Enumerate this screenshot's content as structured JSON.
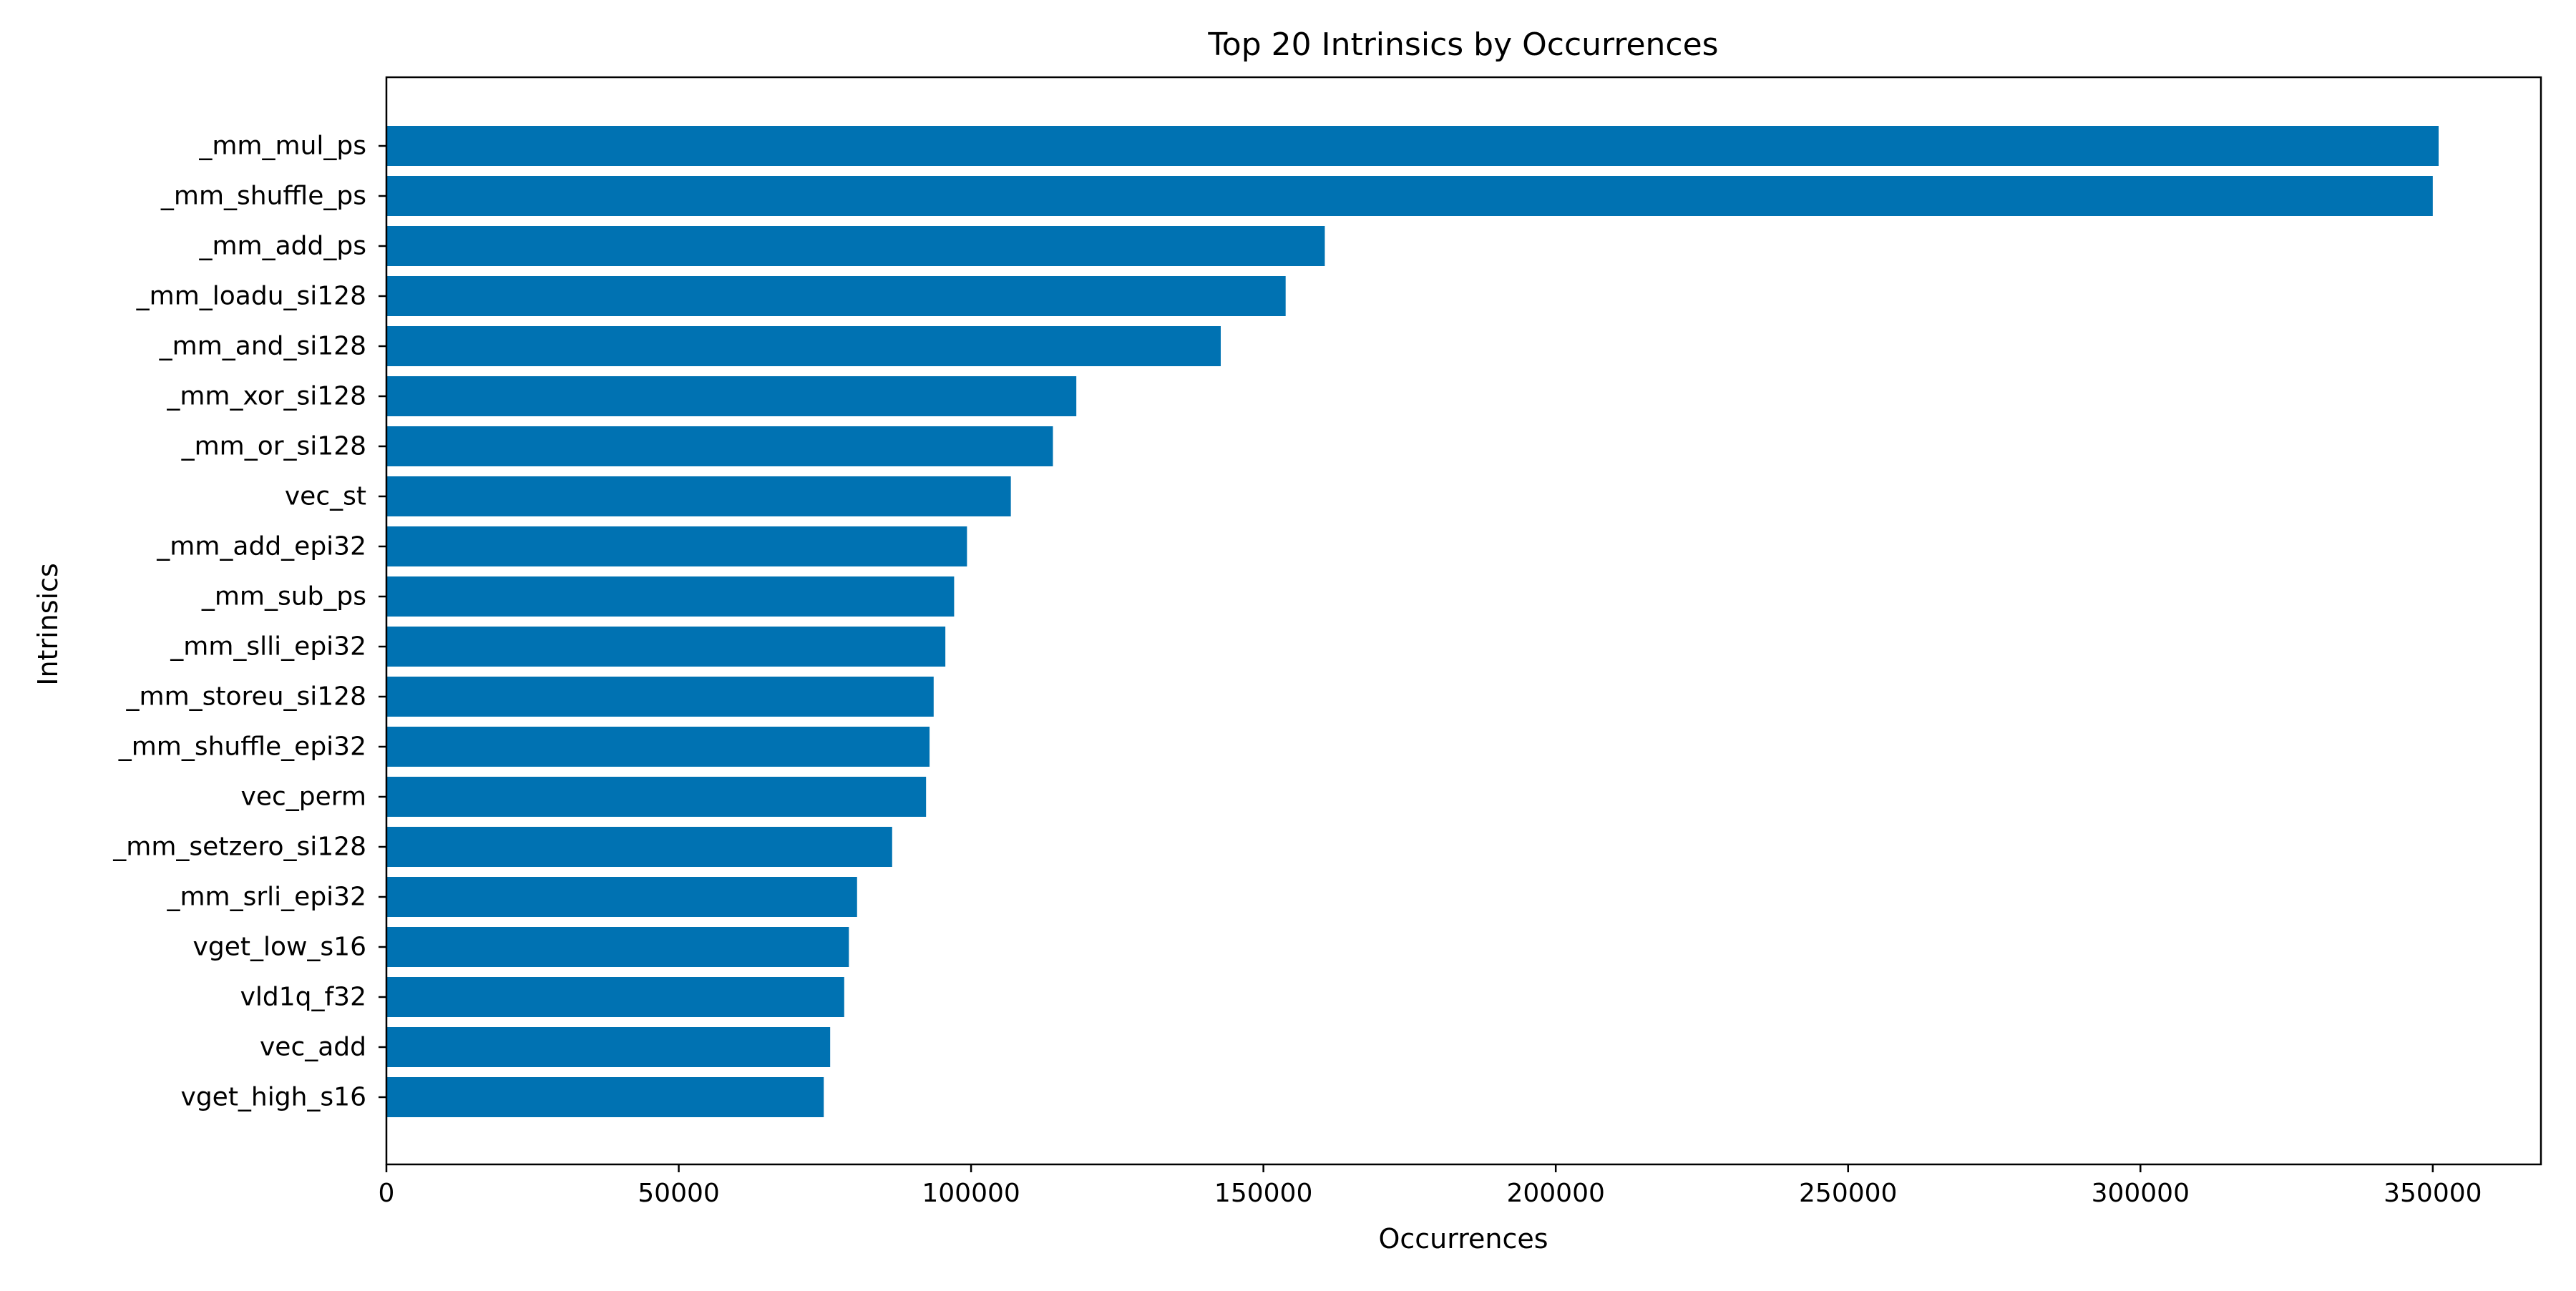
{
  "chart_data": {
    "type": "bar",
    "orientation": "horizontal",
    "title": "Top 20 Intrinsics by Occurrences",
    "xlabel": "Occurrences",
    "ylabel": "Intrinsics",
    "xlim": [
      0,
      368500
    ],
    "xticks": [
      0,
      50000,
      100000,
      150000,
      200000,
      250000,
      300000,
      350000
    ],
    "grid": false,
    "bar_color": "#0072B2",
    "categories": [
      "_mm_mul_ps",
      "_mm_shuffle_ps",
      "_mm_add_ps",
      "_mm_loadu_si128",
      "_mm_and_si128",
      "_mm_xor_si128",
      "_mm_or_si128",
      "vec_st",
      "_mm_add_epi32",
      "_mm_sub_ps",
      "_mm_slli_epi32",
      "_mm_storeu_si128",
      "_mm_shuffle_epi32",
      "vec_perm",
      "_mm_setzero_si128",
      "_mm_srli_epi32",
      "vget_low_s16",
      "vld1q_f32",
      "vec_add",
      "vget_high_s16"
    ],
    "values": [
      351000,
      350000,
      160500,
      153800,
      142700,
      118000,
      114000,
      106800,
      99300,
      97100,
      95600,
      93600,
      92900,
      92300,
      86500,
      80500,
      79100,
      78300,
      75900,
      74800
    ]
  }
}
